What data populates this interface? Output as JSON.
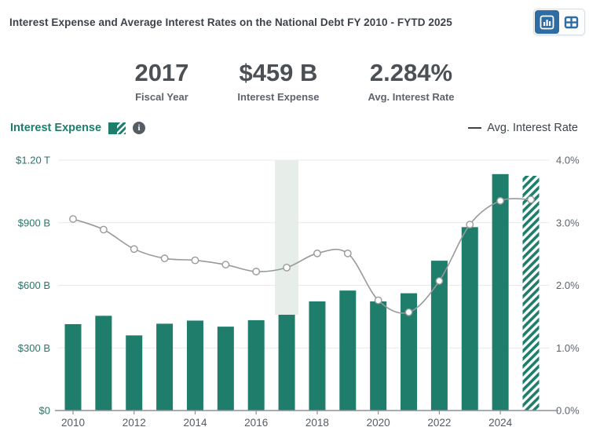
{
  "header": {
    "title": "Interest Expense and Average Interest Rates on the National Debt FY 2010 - FYTD 2025",
    "view_toggle": {
      "chart_button_icon": "bar-chart-icon",
      "table_button_icon": "table-icon",
      "active_view": "chart"
    }
  },
  "stats": [
    {
      "value": "2017",
      "label": "Fiscal Year"
    },
    {
      "value": "$459 B",
      "label": "Interest Expense"
    },
    {
      "value": "2.284%",
      "label": "Avg. Interest Rate"
    }
  ],
  "legend": {
    "interest_expense_label": "Interest Expense",
    "info_icon_glyph": "i",
    "avg_rate_label": "Avg. Interest Rate"
  },
  "colors": {
    "bar_green": "#1f7d6b",
    "accent_blue": "#2e6da4",
    "line_gray": "#98999b",
    "marker_stroke": "#9a9a9a",
    "grid_gray": "#e9e9e9",
    "axis_line": "#8b9298",
    "highlight_band": "#e7eeea",
    "left_axis_text": "#2a7668",
    "right_axis_text": "#5d646b",
    "x_axis_text": "#555b62"
  },
  "chart_data": {
    "type": "combo",
    "title": "Interest Expense and Average Interest Rates on the National Debt FY 2010 - FYTD 2025",
    "categories": [
      "2010",
      "2011",
      "2012",
      "2013",
      "2014",
      "2015",
      "2016",
      "2017",
      "2018",
      "2019",
      "2020",
      "2021",
      "2022",
      "2023",
      "2024",
      "2025"
    ],
    "series": [
      {
        "name": "Interest Expense",
        "type": "bar",
        "unit": "USD billions",
        "values": [
          414,
          454,
          360,
          416,
          431,
          402,
          433,
          459,
          523,
          575,
          523,
          562,
          718,
          879,
          1133,
          1125
        ],
        "last_bar_hatched": true
      },
      {
        "name": "Avg. Interest Rate",
        "type": "line",
        "unit": "percent",
        "values": [
          3.06,
          2.89,
          2.58,
          2.43,
          2.4,
          2.33,
          2.22,
          2.284,
          2.51,
          2.51,
          1.76,
          1.57,
          2.07,
          2.97,
          3.35,
          3.37
        ]
      }
    ],
    "left_axis": {
      "ticks": [
        "$1.20 T",
        "$900 B",
        "$600 B",
        "$300 B",
        "$0"
      ],
      "min": 0,
      "max": 1200
    },
    "right_axis": {
      "ticks": [
        "4.0%",
        "3.0%",
        "2.0%",
        "1.0%",
        "0.0%"
      ],
      "min": 0,
      "max": 4.0
    },
    "x_tick_labels": [
      "2010",
      "2012",
      "2014",
      "2016",
      "2018",
      "2020",
      "2022",
      "2024"
    ],
    "highlighted_category": "2017",
    "grid": true,
    "legend_position": "top"
  }
}
